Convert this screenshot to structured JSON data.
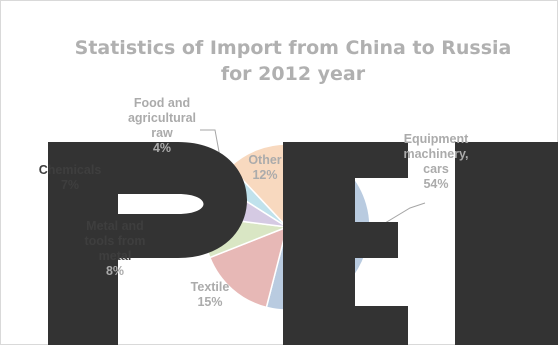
{
  "chart_data": {
    "type": "pie",
    "title_lines": [
      "Statistics of Import from China to Russia",
      "for 2012 year"
    ],
    "start_angle_deg": 0,
    "slices": [
      {
        "label_lines": [
          "Equipment",
          "machinery,",
          "cars"
        ],
        "value": 54,
        "value_label": "54%",
        "color": "#b9cbe0"
      },
      {
        "label_lines": [
          "Textile"
        ],
        "value": 15,
        "value_label": "15%",
        "color": "#e7b8b6"
      },
      {
        "label_lines": [
          "Metal and",
          "tools from",
          "metal"
        ],
        "value": 8,
        "value_label": "8%",
        "color": "#d9e6c4"
      },
      {
        "label_lines": [
          "Chemicals"
        ],
        "value": 7,
        "value_label": "7%",
        "color": "#d5cae3"
      },
      {
        "label_lines": [
          "Food and",
          "agricultural",
          "raw"
        ],
        "value": 4,
        "value_label": "4%",
        "color": "#c0e2ec"
      },
      {
        "label_lines": [
          "Other"
        ],
        "value": 12,
        "value_label": "12%",
        "color": "#f8d9bf"
      }
    ],
    "legend": "none"
  },
  "watermark": {
    "text": "PED",
    "color": "#333333"
  }
}
